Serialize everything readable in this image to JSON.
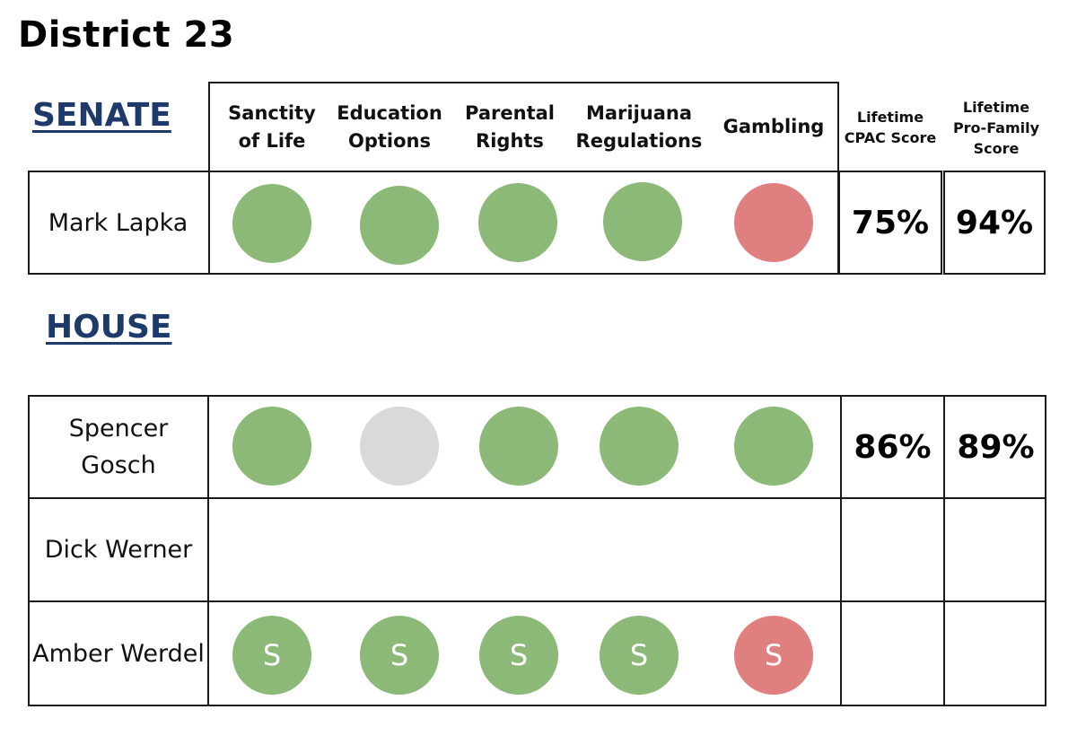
{
  "title": "District 23",
  "colors": {
    "support": "#8cb878",
    "oppose": "#df7f80",
    "no_position": "#d9d9d9",
    "section_heading": "#1d3a6b"
  },
  "columns": [
    "Sanctity of Life",
    "Education Options",
    "Parental Rights",
    "Marijuana Regulations",
    "Gambling"
  ],
  "score_columns": {
    "cpac": "Lifetime CPAC Score",
    "pro_family": "Lifetime Pro-Family Score"
  },
  "senate": {
    "heading": "SENATE",
    "members": [
      {
        "name": "Mark Lapka",
        "votes": [
          "support",
          "support",
          "support",
          "support",
          "oppose"
        ],
        "marks": [
          "",
          "",
          "",
          "",
          ""
        ],
        "cpac": "75%",
        "pro_family": "94%"
      }
    ]
  },
  "house": {
    "heading": "HOUSE",
    "members": [
      {
        "name": "Spencer Gosch",
        "votes": [
          "support",
          "no_position",
          "support",
          "support",
          "support"
        ],
        "marks": [
          "",
          "",
          "",
          "",
          ""
        ],
        "cpac": "86%",
        "pro_family": "89%"
      },
      {
        "name": "Dick Werner",
        "votes": [],
        "marks": [],
        "cpac": "",
        "pro_family": ""
      },
      {
        "name": "Amber Werdel",
        "votes": [
          "support",
          "support",
          "support",
          "support",
          "oppose"
        ],
        "marks": [
          "S",
          "S",
          "S",
          "S",
          "S"
        ],
        "cpac": "",
        "pro_family": ""
      }
    ]
  }
}
